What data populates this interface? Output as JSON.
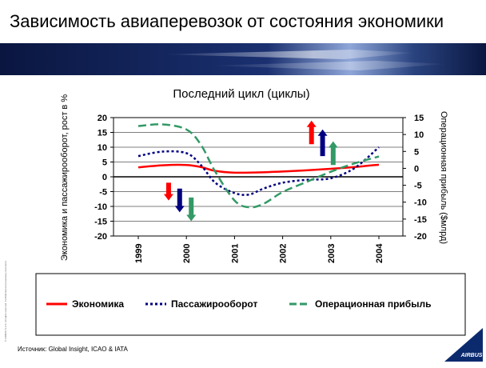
{
  "slide": {
    "title": "Зависимость авиаперевозок от состояния экономики",
    "source": "Источник: Global Insight, ICAO & IATA",
    "copyright": "© AIRBUS S.A.S. All rights reserved. Confidential and proprietary document.",
    "logo_text": "AIRBUS"
  },
  "chart_data": {
    "type": "line",
    "title": "Последний цикл (циклы)",
    "ylabel_left": "Экономика и пассажирооборот, рост в %",
    "ylabel_right": "Операционная прибыль ($млрд)",
    "ylim_left": [
      -20,
      20
    ],
    "ylim_right": [
      -20,
      15
    ],
    "yticks_left": [
      "20",
      "15",
      "10",
      "5",
      "0",
      "-5",
      "-10",
      "-15",
      "-20"
    ],
    "yticks_right": [
      "15",
      "10",
      "5",
      "0",
      "-5",
      "-10",
      "-15",
      "-20"
    ],
    "categories": [
      "1999",
      "2000",
      "2001",
      "2002",
      "2003",
      "2004"
    ],
    "grid": true,
    "legend_position": "bottom",
    "series": [
      {
        "name": "Экономика",
        "axis": "left",
        "style": "solid",
        "color": "#ff0000",
        "x": [
          1999,
          1999.5,
          2000,
          2000.3,
          2000.6,
          2001,
          2001.5,
          2002,
          2002.5,
          2003,
          2003.5,
          2004
        ],
        "values": [
          3.2,
          3.9,
          4.0,
          3.3,
          2.0,
          1.4,
          1.5,
          1.8,
          2.2,
          2.7,
          3.3,
          4.1
        ]
      },
      {
        "name": "Пассажирооборот",
        "axis": "left",
        "style": "dotted",
        "color": "#000080",
        "x": [
          1999,
          1999.5,
          2000,
          2000.3,
          2000.6,
          2001,
          2001.3,
          2001.6,
          2002,
          2002.5,
          2003,
          2003.5,
          2004
        ],
        "values": [
          7.0,
          8.5,
          8.0,
          4.0,
          -2.0,
          -5.5,
          -6.0,
          -4.0,
          -2.0,
          -1.0,
          -0.5,
          3.0,
          10.0
        ]
      },
      {
        "name": "Операционная прибыль",
        "axis": "right",
        "style": "dashed",
        "color": "#339966",
        "x": [
          1999,
          1999.5,
          2000,
          2000.3,
          2000.6,
          2001,
          2001.3,
          2001.6,
          2002,
          2002.5,
          2003,
          2003.5,
          2004
        ],
        "values": [
          12.5,
          13.0,
          11.5,
          7.0,
          -1.0,
          -9.5,
          -11.5,
          -10.5,
          -7.0,
          -4.0,
          -1.0,
          1.5,
          3.5
        ]
      }
    ],
    "arrows": [
      {
        "x": 1999.63,
        "from": -2,
        "to": -8,
        "color": "#ff0000",
        "axis": "left"
      },
      {
        "x": 1999.86,
        "from": -4,
        "to": -12,
        "color": "#000080",
        "axis": "left"
      },
      {
        "x": 2000.1,
        "from": -7,
        "to": -15,
        "color": "#339966",
        "axis": "left"
      },
      {
        "x": 2002.6,
        "from": 11,
        "to": 19,
        "color": "#ff0000",
        "axis": "left"
      },
      {
        "x": 2002.83,
        "from": 7,
        "to": 16,
        "color": "#000080",
        "axis": "left"
      },
      {
        "x": 2003.05,
        "from": 4,
        "to": 12,
        "color": "#339966",
        "axis": "left"
      }
    ]
  }
}
